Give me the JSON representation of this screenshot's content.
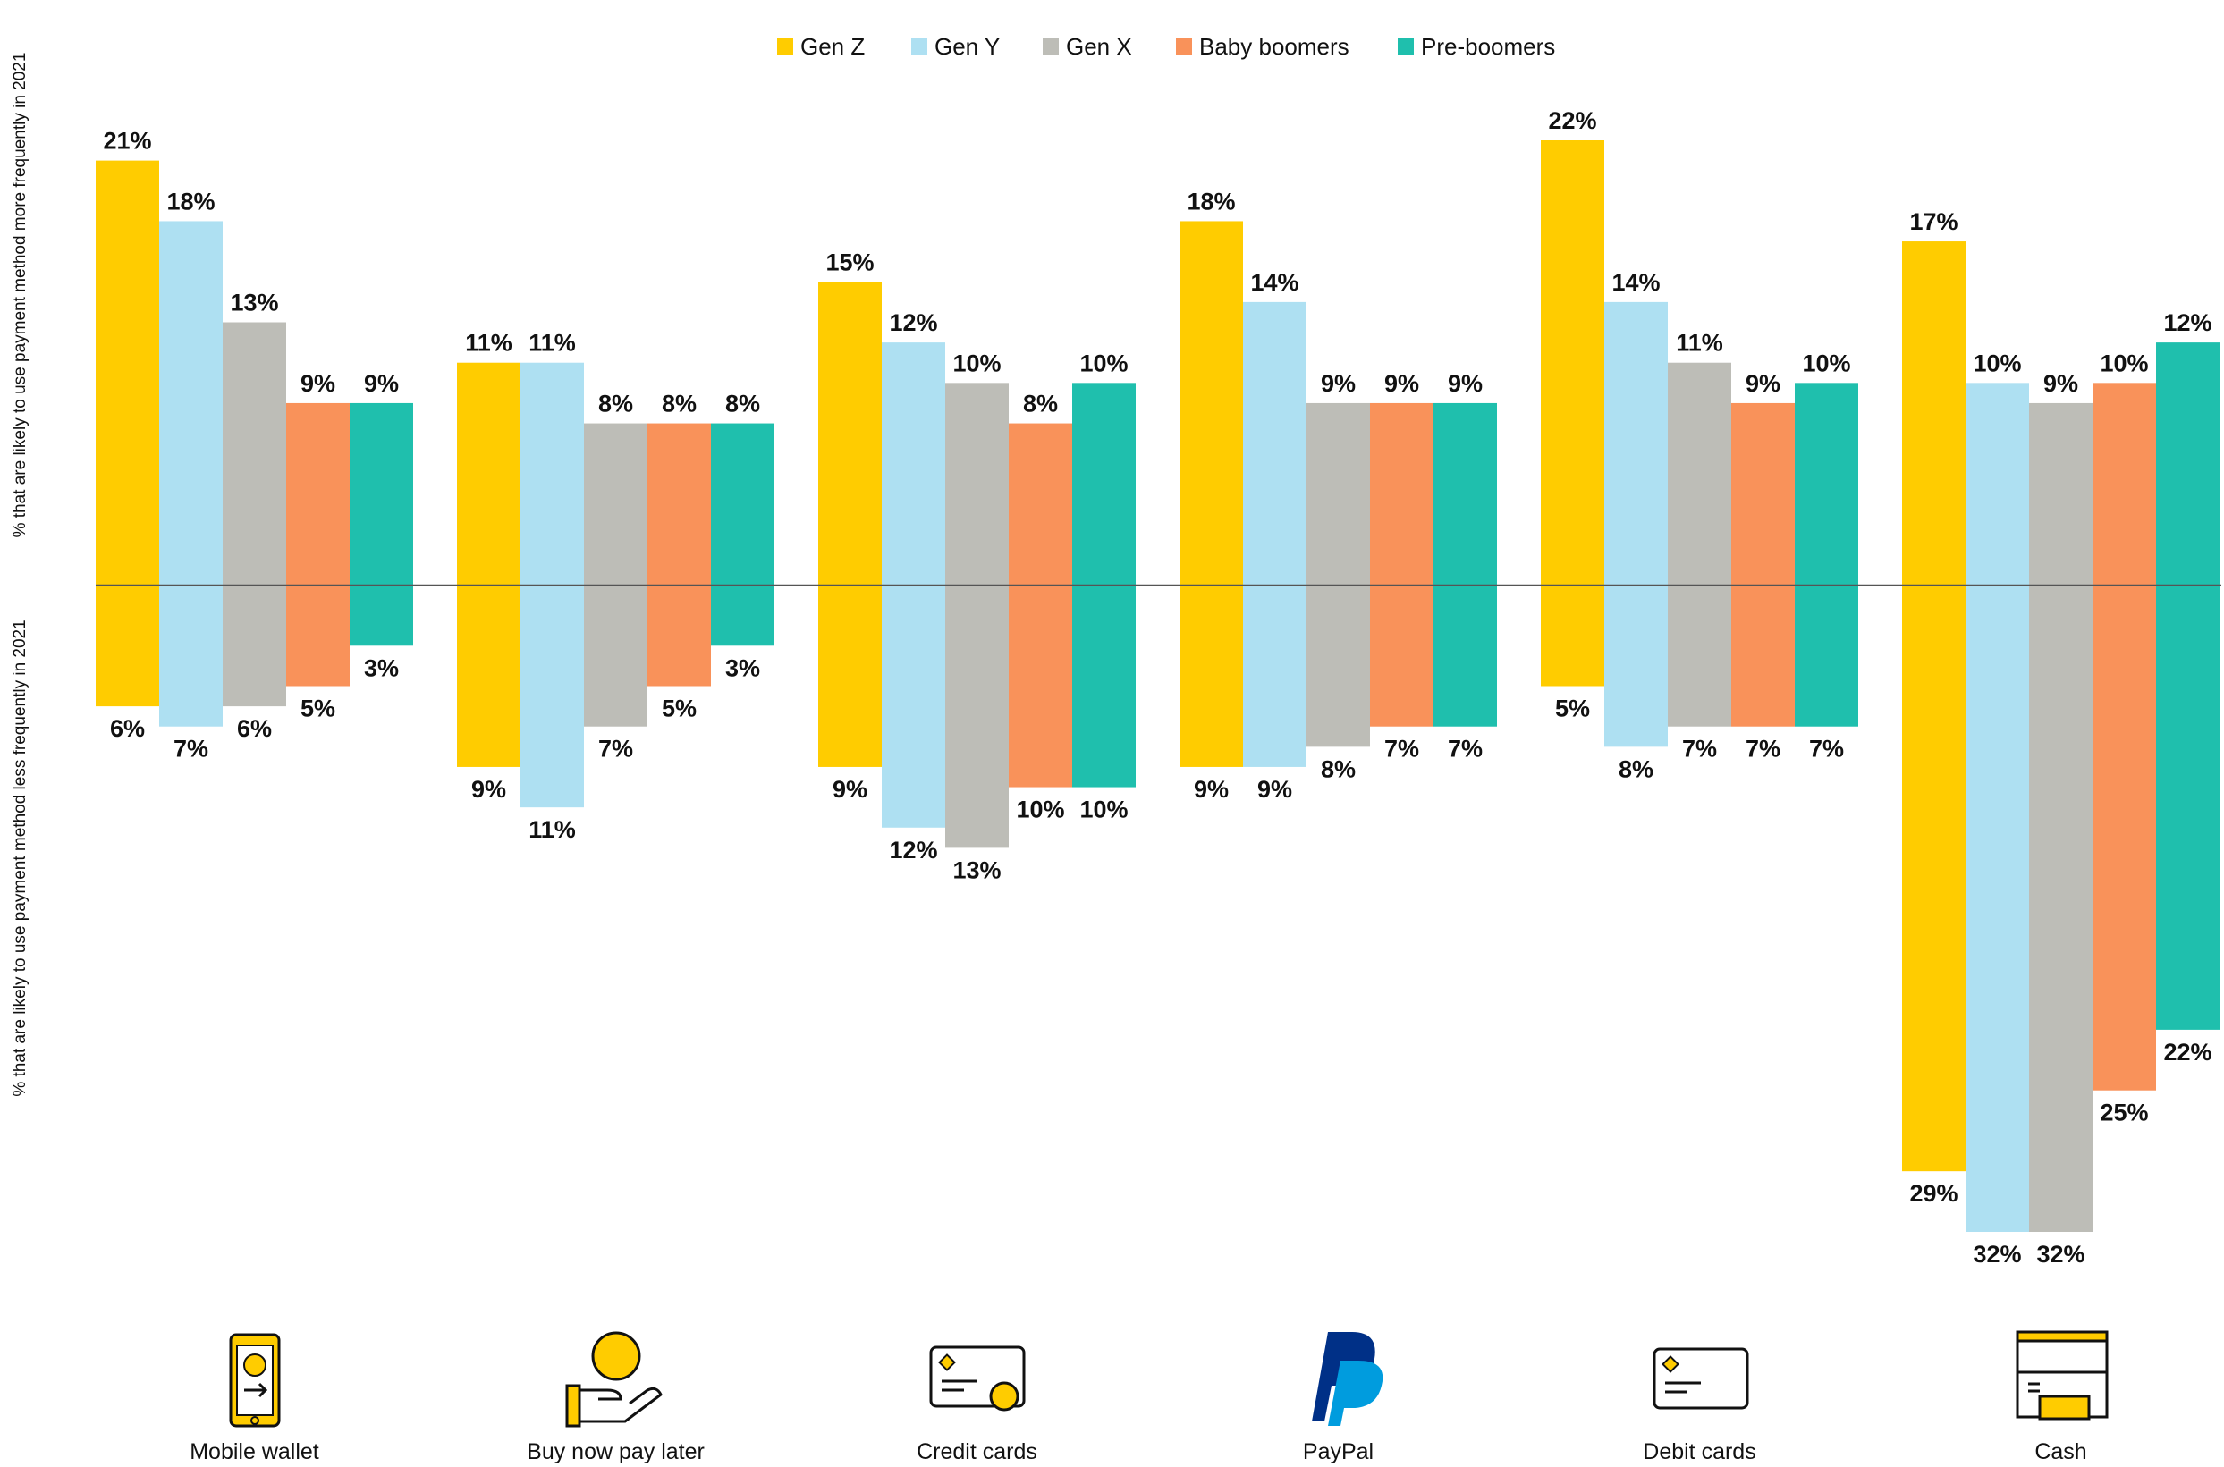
{
  "chart_data": {
    "type": "diverging-bar",
    "y_label_more": "% that are likely to use payment method more frequently in 2021",
    "y_label_less": "% that are likely to use payment method less frequently in 2021",
    "categories": [
      "Mobile wallet",
      "Buy now pay later",
      "Credit cards",
      "PayPal",
      "Debit cards",
      "Cash"
    ],
    "ylim": [
      -32,
      22
    ],
    "series": [
      {
        "name": "Gen Z",
        "color": "#ffcc00",
        "values": [
          21,
          11,
          15,
          18,
          22,
          17
        ],
        "value_labels": [
          "21%",
          "11%",
          "15%",
          "18%",
          "22%",
          "17%"
        ],
        "less_values": [
          6,
          9,
          9,
          9,
          5,
          29
        ],
        "less_value_labels": [
          "6%",
          "9%",
          "9%",
          "9%",
          "5%",
          "29%"
        ]
      },
      {
        "name": "Gen Y",
        "color": "#aee0f2",
        "values": [
          18,
          11,
          12,
          14,
          14,
          10
        ],
        "value_labels": [
          "18%",
          "11%",
          "12%",
          "14%",
          "14%",
          "10%"
        ],
        "less_values": [
          7,
          11,
          12,
          9,
          8,
          32
        ],
        "less_value_labels": [
          "7%",
          "11%",
          "12%",
          "9%",
          "8%",
          "32%"
        ]
      },
      {
        "name": "Gen X",
        "color": "#bdbdb7",
        "values": [
          13,
          8,
          10,
          9,
          11,
          9
        ],
        "value_labels": [
          "13%",
          "8%",
          "10%",
          "9%",
          "11%",
          "9%"
        ],
        "less_values": [
          6,
          7,
          13,
          8,
          7,
          32
        ],
        "less_value_labels": [
          "6%",
          "7%",
          "13%",
          "8%",
          "7%",
          "32%"
        ]
      },
      {
        "name": "Baby boomers",
        "color": "#f9925a",
        "values": [
          9,
          8,
          8,
          9,
          9,
          10
        ],
        "value_labels": [
          "9%",
          "8%",
          "8%",
          "9%",
          "9%",
          "10%"
        ],
        "less_values": [
          5,
          5,
          10,
          7,
          7,
          25
        ],
        "less_value_labels": [
          "5%",
          "5%",
          "10%",
          "7%",
          "7%",
          "25%"
        ]
      },
      {
        "name": "Pre-boomers",
        "color": "#1fbfad",
        "values": [
          9,
          8,
          10,
          9,
          10,
          12
        ],
        "value_labels": [
          "9%",
          "8%",
          "10%",
          "9%",
          "10%",
          "12%"
        ],
        "less_values": [
          3,
          3,
          10,
          7,
          7,
          22
        ],
        "less_value_labels": [
          "3%",
          "3%",
          "10%",
          "7%",
          "7%",
          "22%"
        ]
      }
    ]
  }
}
